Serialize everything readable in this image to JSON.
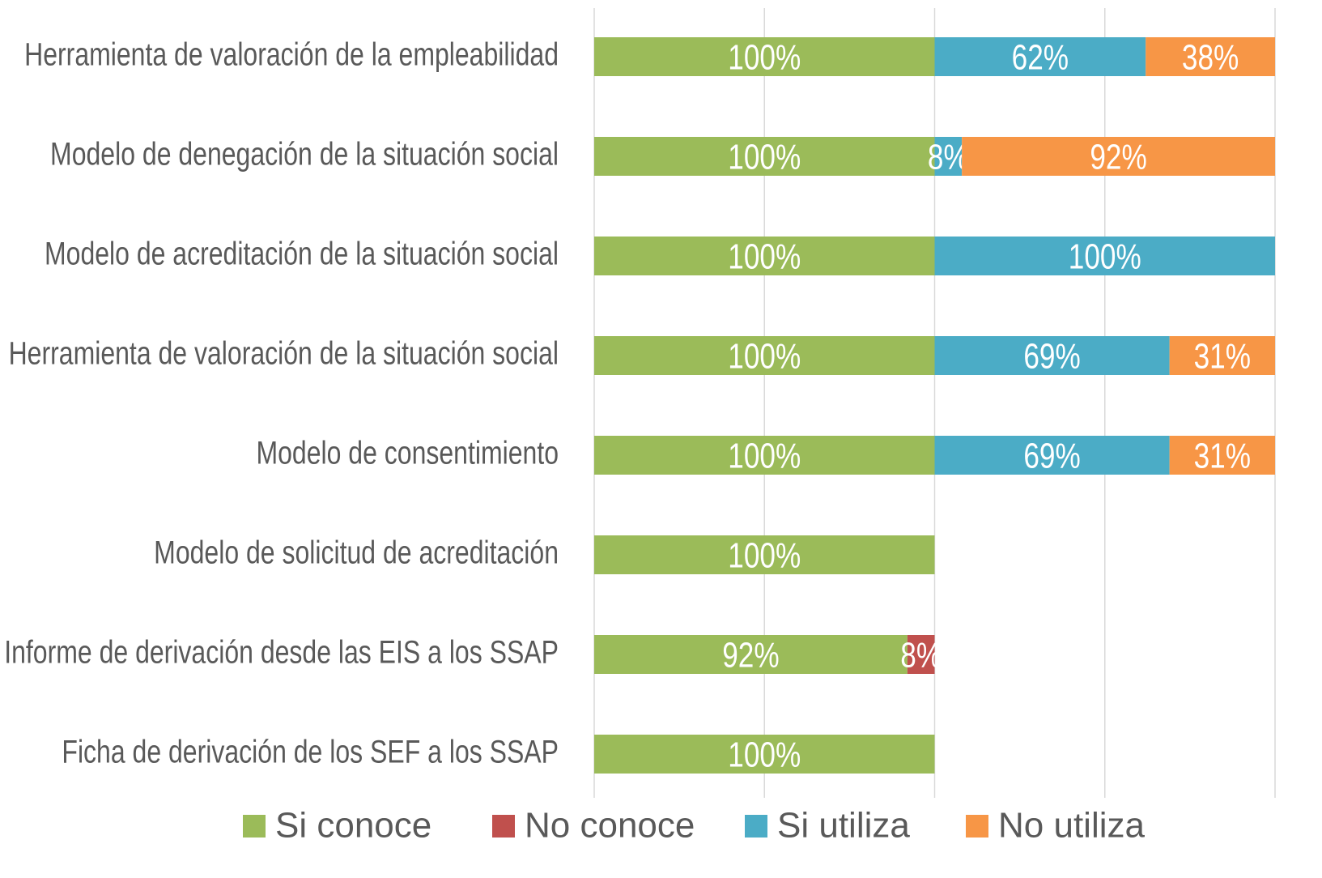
{
  "chart_data": {
    "type": "stacked-bar-horizontal",
    "categories": [
      "Herramienta de valoración de la empleabilidad",
      "Modelo de denegación de la situación social",
      "Modelo de acreditación de la situación social",
      "Herramienta de valoración de la situación social",
      "Modelo de consentimiento",
      "Modelo de solicitud de acreditación",
      "Informe de derivación desde las EIS a los SSAP",
      "Ficha de derivación de los SEF a los SSAP"
    ],
    "series": [
      {
        "name": "Si conoce",
        "color": "#9bbb59",
        "values": [
          100,
          100,
          100,
          100,
          100,
          100,
          92,
          100
        ],
        "value_labels": [
          "100%",
          "100%",
          "100%",
          "100%",
          "100%",
          "100%",
          "92%",
          "100%"
        ]
      },
      {
        "name": "No conoce",
        "color": "#c0504d",
        "values": [
          null,
          null,
          null,
          null,
          null,
          null,
          8,
          null
        ],
        "value_labels": [
          null,
          null,
          null,
          null,
          null,
          null,
          "8%",
          null
        ]
      },
      {
        "name": "Si utiliza",
        "color": "#4bacc6",
        "values": [
          62,
          8,
          100,
          69,
          69,
          null,
          null,
          null
        ],
        "value_labels": [
          "62%",
          "8%",
          "100%",
          "69%",
          "69%",
          null,
          null,
          null
        ]
      },
      {
        "name": "No utiliza",
        "color": "#f79646",
        "values": [
          38,
          92,
          null,
          31,
          31,
          null,
          null,
          null
        ],
        "value_labels": [
          "38%",
          "92%",
          null,
          "31%",
          "31%",
          null,
          null,
          null
        ]
      }
    ],
    "xlim": [
      0,
      200
    ],
    "xticks": [
      0,
      50,
      100,
      150,
      200
    ],
    "grid": true,
    "legend": "bottom"
  }
}
